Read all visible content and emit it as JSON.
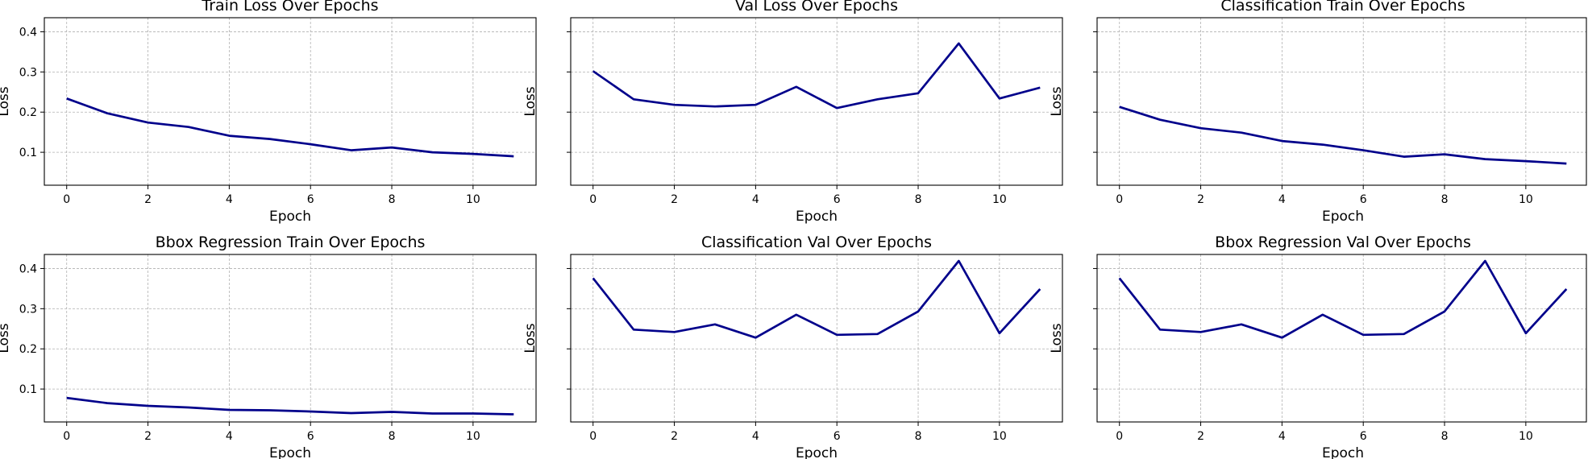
{
  "chart_data": [
    {
      "type": "line",
      "title": "Train Loss Over Epochs",
      "xlabel": "Epoch",
      "ylabel": "Loss",
      "x": [
        0,
        1,
        2,
        3,
        4,
        5,
        6,
        7,
        8,
        9,
        10,
        11
      ],
      "series": [
        {
          "values": [
            0.234,
            0.197,
            0.174,
            0.163,
            0.141,
            0.133,
            0.12,
            0.105,
            0.112,
            0.1,
            0.096,
            0.09
          ]
        }
      ],
      "xlim": [
        -0.55,
        11.55
      ],
      "ylim": [
        0.018,
        0.435
      ],
      "xticks": [
        0,
        2,
        4,
        6,
        8,
        10
      ],
      "yticks": [
        0.1,
        0.2,
        0.3,
        0.4
      ],
      "show_ytick_labels": true,
      "grid": true,
      "color": "#00008b"
    },
    {
      "type": "line",
      "title": "Val Loss Over Epochs",
      "xlabel": "Epoch",
      "ylabel": "Loss",
      "x": [
        0,
        1,
        2,
        3,
        4,
        5,
        6,
        7,
        8,
        9,
        10,
        11
      ],
      "series": [
        {
          "values": [
            0.302,
            0.232,
            0.218,
            0.214,
            0.218,
            0.263,
            0.21,
            0.232,
            0.247,
            0.371,
            0.234,
            0.261
          ]
        }
      ],
      "xlim": [
        -0.55,
        11.55
      ],
      "ylim": [
        0.018,
        0.435
      ],
      "xticks": [
        0,
        2,
        4,
        6,
        8,
        10
      ],
      "yticks": [
        0.1,
        0.2,
        0.3,
        0.4
      ],
      "show_ytick_labels": false,
      "grid": true,
      "color": "#00008b"
    },
    {
      "type": "line",
      "title": "Classification Train Over Epochs",
      "xlabel": "Epoch",
      "ylabel": "Loss",
      "x": [
        0,
        1,
        2,
        3,
        4,
        5,
        6,
        7,
        8,
        9,
        10,
        11
      ],
      "series": [
        {
          "values": [
            0.213,
            0.181,
            0.16,
            0.149,
            0.128,
            0.119,
            0.105,
            0.089,
            0.095,
            0.083,
            0.078,
            0.072
          ]
        }
      ],
      "xlim": [
        -0.55,
        11.55
      ],
      "ylim": [
        0.018,
        0.435
      ],
      "xticks": [
        0,
        2,
        4,
        6,
        8,
        10
      ],
      "yticks": [
        0.1,
        0.2,
        0.3,
        0.4
      ],
      "show_ytick_labels": false,
      "grid": true,
      "color": "#00008b"
    },
    {
      "type": "line",
      "title": "Bbox Regression Train Over Epochs",
      "xlabel": "Epoch",
      "ylabel": "Loss",
      "x": [
        0,
        1,
        2,
        3,
        4,
        5,
        6,
        7,
        8,
        9,
        10,
        11
      ],
      "series": [
        {
          "values": [
            0.078,
            0.065,
            0.058,
            0.054,
            0.048,
            0.047,
            0.044,
            0.04,
            0.043,
            0.039,
            0.039,
            0.037
          ]
        }
      ],
      "xlim": [
        -0.55,
        11.55
      ],
      "ylim": [
        0.018,
        0.435
      ],
      "xticks": [
        0,
        2,
        4,
        6,
        8,
        10
      ],
      "yticks": [
        0.1,
        0.2,
        0.3,
        0.4
      ],
      "show_ytick_labels": true,
      "grid": true,
      "color": "#00008b"
    },
    {
      "type": "line",
      "title": "Classification Val Over Epochs",
      "xlabel": "Epoch",
      "ylabel": "Loss",
      "x": [
        0,
        1,
        2,
        3,
        4,
        5,
        6,
        7,
        8,
        9,
        10,
        11
      ],
      "series": [
        {
          "values": [
            0.376,
            0.248,
            0.242,
            0.261,
            0.228,
            0.285,
            0.235,
            0.237,
            0.293,
            0.419,
            0.239,
            0.349
          ]
        }
      ],
      "xlim": [
        -0.55,
        11.55
      ],
      "ylim": [
        0.018,
        0.435
      ],
      "xticks": [
        0,
        2,
        4,
        6,
        8,
        10
      ],
      "yticks": [
        0.1,
        0.2,
        0.3,
        0.4
      ],
      "show_ytick_labels": false,
      "grid": true,
      "color": "#00008b"
    },
    {
      "type": "line",
      "title": "Bbox Regression Val Over Epochs",
      "xlabel": "Epoch",
      "ylabel": "Loss",
      "x": [
        0,
        1,
        2,
        3,
        4,
        5,
        6,
        7,
        8,
        9,
        10,
        11
      ],
      "series": [
        {
          "values": [
            0.376,
            0.248,
            0.242,
            0.261,
            0.228,
            0.285,
            0.235,
            0.237,
            0.293,
            0.419,
            0.239,
            0.349
          ]
        }
      ],
      "xlim": [
        -0.55,
        11.55
      ],
      "ylim": [
        0.018,
        0.435
      ],
      "xticks": [
        0,
        2,
        4,
        6,
        8,
        10
      ],
      "yticks": [
        0.1,
        0.2,
        0.3,
        0.4
      ],
      "show_ytick_labels": false,
      "grid": true,
      "color": "#00008b"
    }
  ]
}
